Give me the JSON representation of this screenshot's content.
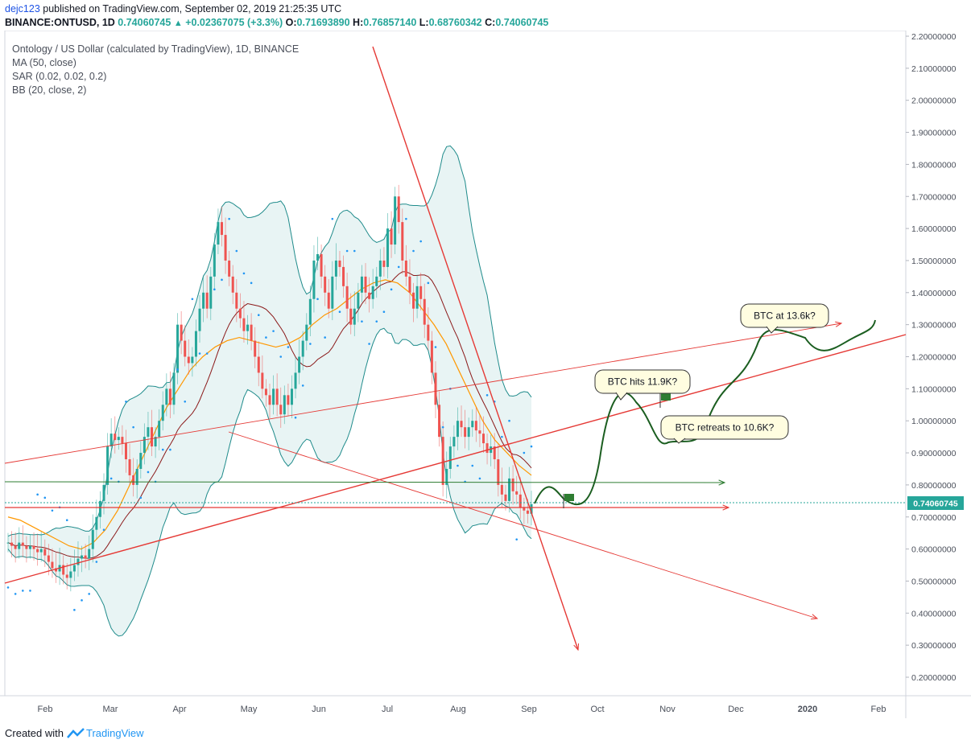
{
  "header": {
    "author": "dejc123",
    "published": "published on TradingView.com, September 02, 2019 21:25:35 UTC",
    "symbol": "BINANCE:ONTUSD, 1D",
    "last": "0.74060745",
    "change": "+0.02367075 (+3.3%)",
    "o_label": "O:",
    "open": "0.71693890",
    "h_label": "H:",
    "high": "0.76857140",
    "l_label": "L:",
    "low": "0.68760342",
    "c_label": "C:",
    "close": "0.74060745"
  },
  "legend": {
    "title": "Ontology / US Dollar (calculated by TradingView), 1D, BINANCE",
    "ma": "MA (50, close)",
    "sar": "SAR (0.02, 0.02, 0.2)",
    "bb": "BB (20, close, 2)"
  },
  "footer": {
    "created_with": "Created with",
    "brand": "TradingView"
  },
  "colors": {
    "up": "#26a69a",
    "down": "#ef5350",
    "bb": "#1f8b8b",
    "bb_fill": "#e8f4f4",
    "ma": "#ff9800",
    "basis": "#8b1a1a",
    "sar": "#2196f3",
    "trend": "#e53935",
    "green_line": "#2e7d32",
    "path": "#1b5e20",
    "price_tag": "#26a69a"
  },
  "chart_data": {
    "type": "candlestick",
    "y_ticks": [
      "2.20000000",
      "2.10000000",
      "2.00000000",
      "1.90000000",
      "1.80000000",
      "1.70000000",
      "1.60000000",
      "1.50000000",
      "1.40000000",
      "1.30000000",
      "1.20000000",
      "1.10000000",
      "1.00000000",
      "0.90000000",
      "0.80000000",
      "0.70000000",
      "0.60000000",
      "0.50000000",
      "0.40000000",
      "0.30000000",
      "0.20000000"
    ],
    "y_range": [
      0.13,
      2.22
    ],
    "x_ticks": [
      "Feb",
      "Mar",
      "Apr",
      "May",
      "Jun",
      "Jul",
      "Aug",
      "Sep",
      "Oct",
      "Nov",
      "Dec",
      "2020",
      "Feb"
    ],
    "last_price_label": "0.74060745",
    "candles_close": [
      0.62,
      0.61,
      0.6,
      0.62,
      0.61,
      0.6,
      0.61,
      0.6,
      0.59,
      0.6,
      0.58,
      0.56,
      0.54,
      0.53,
      0.55,
      0.52,
      0.51,
      0.53,
      0.55,
      0.57,
      0.58,
      0.57,
      0.6,
      0.66,
      0.7,
      0.75,
      0.8,
      0.92,
      0.96,
      0.94,
      0.95,
      0.93,
      0.88,
      0.83,
      0.8,
      0.85,
      0.9,
      0.95,
      0.98,
      0.92,
      0.95,
      1.0,
      1.05,
      1.1,
      1.05,
      1.15,
      1.3,
      1.25,
      1.2,
      1.18,
      1.2,
      1.28,
      1.35,
      1.4,
      1.35,
      1.45,
      1.55,
      1.62,
      1.58,
      1.5,
      1.45,
      1.4,
      1.35,
      1.32,
      1.28,
      1.3,
      1.25,
      1.2,
      1.15,
      1.1,
      1.08,
      1.05,
      1.1,
      1.05,
      1.02,
      1.08,
      1.05,
      1.1,
      1.15,
      1.2,
      1.25,
      1.3,
      1.38,
      1.5,
      1.52,
      1.45,
      1.4,
      1.35,
      1.45,
      1.5,
      1.48,
      1.42,
      1.35,
      1.3,
      1.35,
      1.4,
      1.45,
      1.4,
      1.38,
      1.42,
      1.45,
      1.5,
      1.48,
      1.6,
      1.55,
      1.7,
      1.62,
      1.5,
      1.45,
      1.4,
      1.35,
      1.42,
      1.38,
      1.3,
      1.25,
      1.15,
      1.05,
      0.95,
      0.8,
      0.85,
      0.92,
      0.95,
      1.0,
      0.98,
      0.95,
      0.98,
      1.0,
      0.97,
      0.96,
      0.93,
      0.9,
      0.92,
      0.88,
      0.8,
      0.77,
      0.75,
      0.82,
      0.78,
      0.77,
      0.73,
      0.72,
      0.71,
      0.74
    ],
    "ma50_close": [
      0.7,
      0.69,
      0.67,
      0.65,
      0.63,
      0.61,
      0.6,
      0.62,
      0.66,
      0.72,
      0.8,
      0.88,
      0.96,
      1.04,
      1.1,
      1.16,
      1.2,
      1.23,
      1.25,
      1.26,
      1.25,
      1.24,
      1.23,
      1.24,
      1.26,
      1.3,
      1.33,
      1.35,
      1.38,
      1.41,
      1.43,
      1.44,
      1.43,
      1.4,
      1.35,
      1.3,
      1.24,
      1.16,
      1.08,
      1.0,
      0.94,
      0.9,
      0.86,
      0.83
    ],
    "annotations": [
      "BTC hits 11.9K?",
      "BTC retreats to 10.6K?",
      "BTC at 13.6k?"
    ]
  }
}
